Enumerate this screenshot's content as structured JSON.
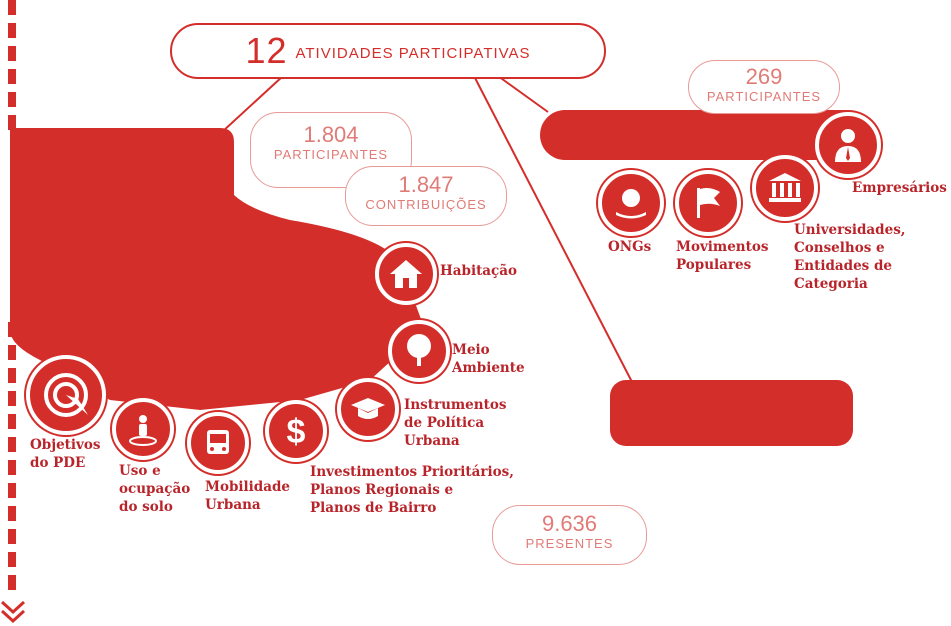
{
  "title": {
    "number": "12",
    "text": "atividades participativas"
  },
  "clouds": {
    "left_participants": {
      "number": "1.804",
      "label": "PARTICIPANTES"
    },
    "left_contributions": {
      "number": "1.847",
      "label": "CONTRIBUIÇÕES"
    },
    "right_participants": {
      "number": "269",
      "label": "PARTICIPANTES"
    },
    "presentes": {
      "number": "9.636",
      "label": "PRESENTES"
    }
  },
  "themes": [
    {
      "icon": "target-icon",
      "lines": [
        "Objetivos",
        "do PDE"
      ]
    },
    {
      "icon": "person-location-icon",
      "lines": [
        "Uso e",
        "ocupação",
        "do solo"
      ]
    },
    {
      "icon": "bus-icon",
      "lines": [
        "Mobilidade",
        "Urbana"
      ]
    },
    {
      "icon": "dollar-icon",
      "lines": [
        "Investimentos Prioritários,",
        "Planos Regionais e",
        "Planos de Bairro"
      ]
    },
    {
      "icon": "graduation-cap-icon",
      "lines": [
        "Instrumentos",
        "de Política",
        "Urbana"
      ]
    },
    {
      "icon": "tree-icon",
      "lines": [
        "Meio",
        "Ambiente"
      ]
    },
    {
      "icon": "house-icon",
      "lines": [
        "Habitação"
      ]
    }
  ],
  "segments": [
    {
      "icon": "globe-hand-icon",
      "lines": [
        "ONGs"
      ]
    },
    {
      "icon": "flag-icon",
      "lines": [
        "Movimentos",
        "Populares"
      ]
    },
    {
      "icon": "institution-icon",
      "lines": [
        "Universidades,",
        "Conselhos e",
        "Entidades de Categoria"
      ]
    },
    {
      "icon": "businessman-icon",
      "lines": [
        "Empresários"
      ]
    }
  ],
  "colors": {
    "accent": "#d42e2b",
    "cloud": "#e89a97"
  }
}
